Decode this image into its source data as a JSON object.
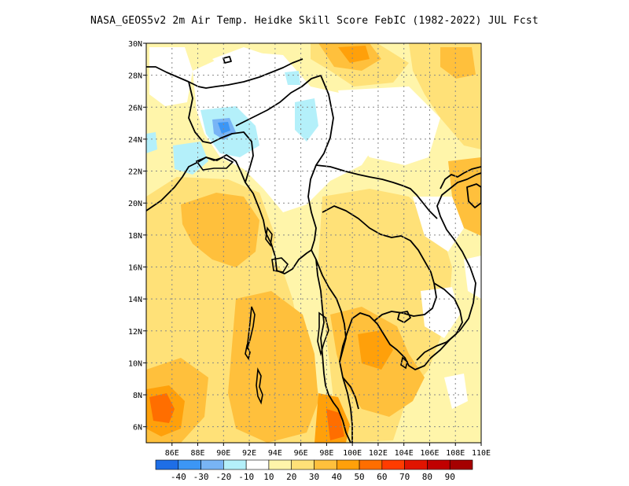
{
  "title": "NASA_GEOS5v2  2m Air Temp. Heidke Skill Score FebIC (1982-2022) JUL Fcst",
  "map": {
    "lon_range": [
      84,
      110
    ],
    "lat_range": [
      5,
      30
    ],
    "lat_ticks": [
      "30N",
      "28N",
      "26N",
      "24N",
      "22N",
      "20N",
      "18N",
      "16N",
      "14N",
      "12N",
      "10N",
      "8N",
      "6N"
    ],
    "lon_ticks": [
      "86E",
      "88E",
      "90E",
      "92E",
      "94E",
      "96E",
      "98E",
      "100E",
      "102E",
      "104E",
      "106E",
      "108E",
      "110E"
    ],
    "grid": "dotted"
  },
  "colorbar": {
    "colors": [
      "#1e6ee6",
      "#3c96f5",
      "#78b4f5",
      "#b4f0fa",
      "#ffffff",
      "#fff5aa",
      "#ffe178",
      "#ffc03c",
      "#ffa00a",
      "#ff6e00",
      "#ff3c00",
      "#e11400",
      "#c00000",
      "#a50000"
    ],
    "labels": [
      "-40",
      "-30",
      "-20",
      "-10",
      "10",
      "20",
      "30",
      "40",
      "50",
      "60",
      "70",
      "80",
      "90"
    ]
  }
}
